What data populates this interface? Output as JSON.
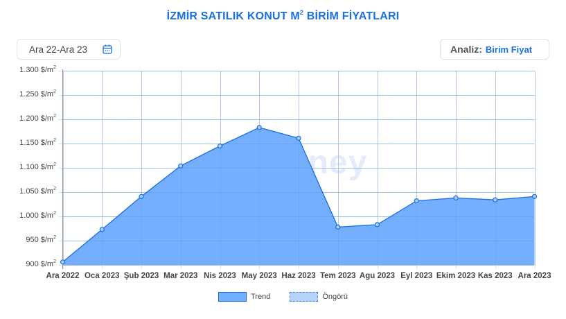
{
  "header": {
    "title_main": "İZMİR SATILIK KONUT M",
    "title_sup": "2",
    "title_rest": " BİRİM FİYATLARI"
  },
  "controls": {
    "date_range": "Ara 22-Ara 23",
    "date_icon": "calendar-icon",
    "analysis_label": "Analiz:",
    "analysis_value": "Birim Fiyat"
  },
  "watermark": "egemoney",
  "legend": [
    {
      "label": "Trend",
      "style": "solid"
    },
    {
      "label": "Öngörü",
      "style": "dashed"
    }
  ],
  "colors": {
    "accent": "#1a6fdf",
    "area_fill": "#74aefd",
    "forecast_fill": "#b5d2fb",
    "grid": "#e0e0e0"
  },
  "chart_data": {
    "type": "area",
    "title": "İZMİR SATILIK KONUT M² BİRİM FİYATLARI",
    "xlabel": "",
    "ylabel": "$/m²",
    "categories": [
      "Ara 2022",
      "Oca 2023",
      "Şub 2023",
      "Mar 2023",
      "Nis 2023",
      "May 2023",
      "Haz 2023",
      "Tem 2023",
      "Agu 2023",
      "Eyl 2023",
      "Ekim 2023",
      "Kas 2023",
      "Ara 2023"
    ],
    "series": [
      {
        "name": "Trend",
        "values": [
          906,
          973,
          1041,
          1104,
          1145,
          1183,
          1161,
          978,
          983,
          1032,
          1038,
          1034,
          1041
        ]
      },
      {
        "name": "Öngörü",
        "values": []
      }
    ],
    "yticks": [
      "900 $/m²",
      "950 $/m²",
      "1.000 $/m²",
      "1.050 $/m²",
      "1.100 $/m²",
      "1.150 $/m²",
      "1.200 $/m²",
      "1.250 $/m²",
      "1.300 $/m²"
    ],
    "ylim": [
      900,
      1300
    ],
    "grid": true,
    "legend_position": "bottom"
  }
}
